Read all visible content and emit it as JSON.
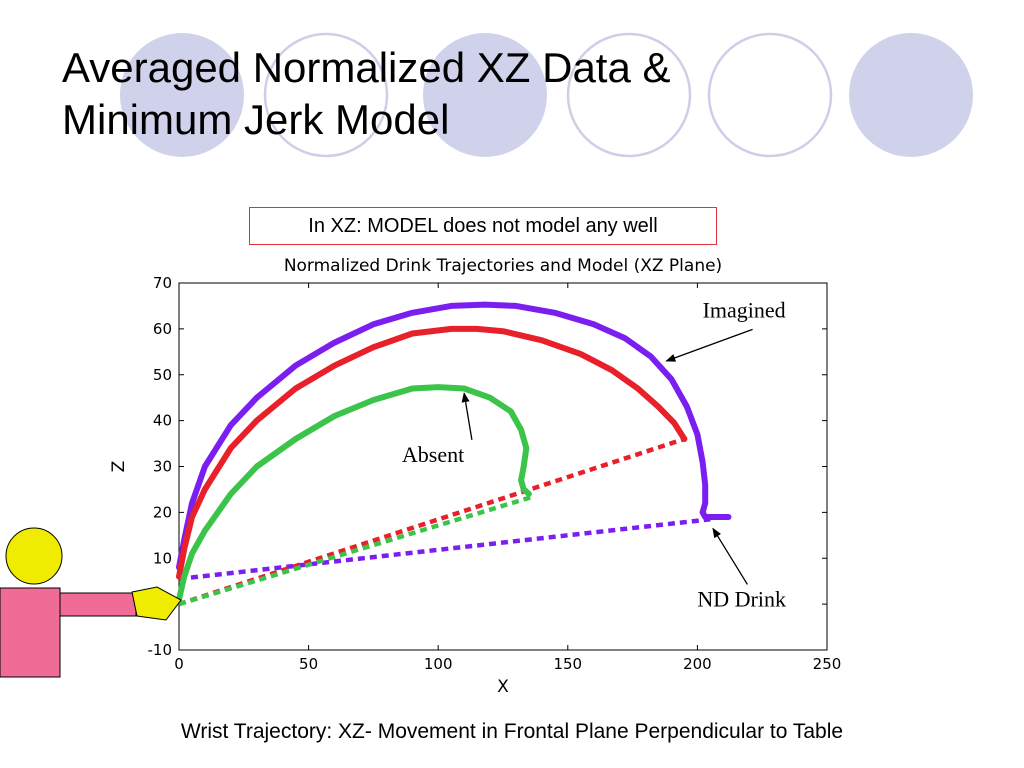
{
  "slide": {
    "title_line1": "Averaged Normalized XZ Data &",
    "title_line2": "Minimum Jerk Model",
    "note": "In XZ: MODEL does not model any well",
    "caption": "Wrist Trajectory: XZ- Movement in Frontal Plane Perpendicular to Table",
    "colors": {
      "decor_fill": "#d0d2ec",
      "decor_ring": "#cdcfe8",
      "note_border": "#e0323a",
      "figure_head": "#f0ec00",
      "figure_body": "#f06c96",
      "figure_hand": "#f0ec00"
    }
  },
  "chart_data": {
    "type": "line",
    "title": "Normalized Drink Trajectories and Model (XZ Plane)",
    "xlabel": "X",
    "ylabel": "Z",
    "xlim": [
      0,
      250
    ],
    "ylim": [
      -10,
      70
    ],
    "xticks": [
      0,
      50,
      100,
      150,
      200,
      250
    ],
    "yticks": [
      -10,
      0,
      10,
      20,
      30,
      40,
      50,
      60,
      70
    ],
    "xticklabels": [
      "0",
      "50",
      "100",
      "150",
      "200",
      "250"
    ],
    "yticklabels": [
      "-10",
      "",
      "10",
      "20",
      "30",
      "40",
      "50",
      "60",
      "70"
    ],
    "grid": false,
    "series": [
      {
        "color": "#7a1ff0",
        "style": "solid",
        "x": [
          0,
          2,
          5,
          10,
          20,
          30,
          45,
          60,
          75,
          90,
          105,
          118,
          130,
          145,
          160,
          172,
          182,
          190,
          196,
          200,
          202,
          203,
          203,
          202,
          203,
          206,
          212
        ],
        "y": [
          8,
          14,
          22,
          30,
          39,
          45,
          52,
          57,
          61,
          63.5,
          65,
          65.3,
          65,
          63.5,
          61,
          58,
          54,
          49,
          43,
          37,
          31,
          26,
          22,
          20,
          19,
          19,
          19
        ]
      },
      {
        "color": "#7a1ff0",
        "style": "dashed",
        "x": [
          0,
          205
        ],
        "y": [
          5.5,
          18.5
        ]
      },
      {
        "color": "#e8202a",
        "style": "solid",
        "x": [
          0,
          2,
          5,
          10,
          20,
          30,
          45,
          60,
          75,
          90,
          105,
          115,
          125,
          140,
          155,
          167,
          177,
          185,
          191,
          195
        ],
        "y": [
          6,
          12,
          19,
          25,
          34,
          40,
          47,
          52,
          56,
          59,
          60,
          60,
          59.5,
          57.5,
          54.5,
          51,
          47,
          43,
          39.5,
          36
        ]
      },
      {
        "color": "#e8202a",
        "style": "dashed",
        "x": [
          0,
          195
        ],
        "y": [
          0,
          36
        ]
      },
      {
        "color": "#3cc44a",
        "style": "solid",
        "x": [
          0,
          2,
          5,
          10,
          20,
          30,
          45,
          60,
          75,
          90,
          100,
          110,
          120,
          128,
          132,
          134,
          133,
          132,
          133,
          135
        ],
        "y": [
          1,
          6,
          11,
          16,
          24,
          30,
          36,
          41,
          44.5,
          47,
          47.3,
          47,
          45,
          42,
          38,
          34,
          30,
          27,
          25,
          24
        ]
      },
      {
        "color": "#3cc44a",
        "style": "dashed",
        "x": [
          0,
          137
        ],
        "y": [
          0,
          23.5
        ]
      }
    ],
    "annotations": [
      {
        "text": "Imagined",
        "text_x": 202,
        "text_y": 62.5,
        "arrow_x": 188,
        "arrow_y": 53
      },
      {
        "text": "Absent",
        "text_x": 86,
        "text_y": 31,
        "arrow_x": 110,
        "arrow_y": 46
      },
      {
        "text": "ND Drink",
        "text_x": 200,
        "text_y": -0.5,
        "arrow_x": 206,
        "arrow_y": 16.5
      }
    ]
  }
}
